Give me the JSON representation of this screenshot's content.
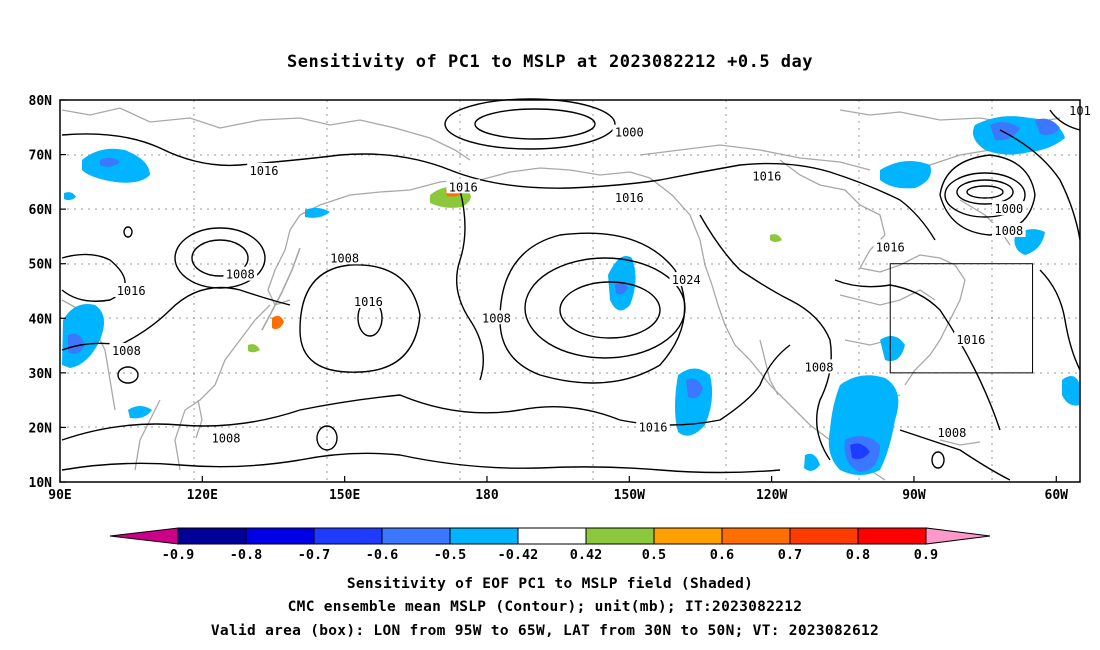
{
  "title": "Sensitivity of PC1 to MSLP at 2023082212 +0.5 day",
  "map": {
    "lon_ticks": [
      "90E",
      "120E",
      "150E",
      "180",
      "150W",
      "120W",
      "90W",
      "60W"
    ],
    "lat_ticks": [
      "80N",
      "70N",
      "60N",
      "50N",
      "40N",
      "30N",
      "20N",
      "10N"
    ],
    "gridlines": "dotted",
    "valid_box": {
      "lon": [
        -95,
        -65
      ],
      "lat": [
        30,
        50
      ]
    },
    "contour_labels": [
      {
        "text": "1000",
        "lon": -150,
        "lat": 74
      },
      {
        "text": "1016",
        "lon": 133,
        "lat": 67
      },
      {
        "text": "1016",
        "lon": 175,
        "lat": 64
      },
      {
        "text": "1016",
        "lon": -150,
        "lat": 62
      },
      {
        "text": "1016",
        "lon": -121,
        "lat": 66
      },
      {
        "text": "1016",
        "lon": -95,
        "lat": 53
      },
      {
        "text": "1000",
        "lon": -70,
        "lat": 60
      },
      {
        "text": "1008",
        "lon": -70,
        "lat": 56
      },
      {
        "text": "101",
        "lon": -55,
        "lat": 78
      },
      {
        "text": "1008",
        "lon": 150,
        "lat": 51
      },
      {
        "text": "1008",
        "lon": 128,
        "lat": 48
      },
      {
        "text": "1016",
        "lon": 105,
        "lat": 45
      },
      {
        "text": "1016",
        "lon": 155,
        "lat": 43
      },
      {
        "text": "1024",
        "lon": -138,
        "lat": 47
      },
      {
        "text": "1008",
        "lon": 182,
        "lat": 40
      },
      {
        "text": "1008",
        "lon": 104,
        "lat": 34
      },
      {
        "text": "1008",
        "lon": -110,
        "lat": 31
      },
      {
        "text": "1016",
        "lon": -78,
        "lat": 36
      },
      {
        "text": "1016",
        "lon": -145,
        "lat": 20
      },
      {
        "text": "1008",
        "lon": 125,
        "lat": 18
      },
      {
        "text": "1008",
        "lon": -82,
        "lat": 19
      }
    ]
  },
  "colorbar": {
    "labels": [
      "-0.9",
      "-0.8",
      "-0.7",
      "-0.6",
      "-0.5",
      "-0.42",
      "0.42",
      "0.5",
      "0.6",
      "0.7",
      "0.8",
      "0.9"
    ],
    "colors": [
      "#000099",
      "#0000e6",
      "#1e3cff",
      "#3c78ff",
      "#00b4ff",
      "#ffffff",
      "#8cc83c",
      "#ffa000",
      "#ff6e00",
      "#ff3c00",
      "#ff0000"
    ],
    "low_end_color": "#cc0088",
    "high_end_color": "#ff99cc"
  },
  "captions": [
    "Sensitivity of EOF PC1 to MSLP field (Shaded)",
    "CMC ensemble mean MSLP (Contour); unit(mb); IT:2023082212",
    "Valid area (box): LON from 95W to 65W, LAT from 30N to 50N; VT: 2023082612"
  ]
}
